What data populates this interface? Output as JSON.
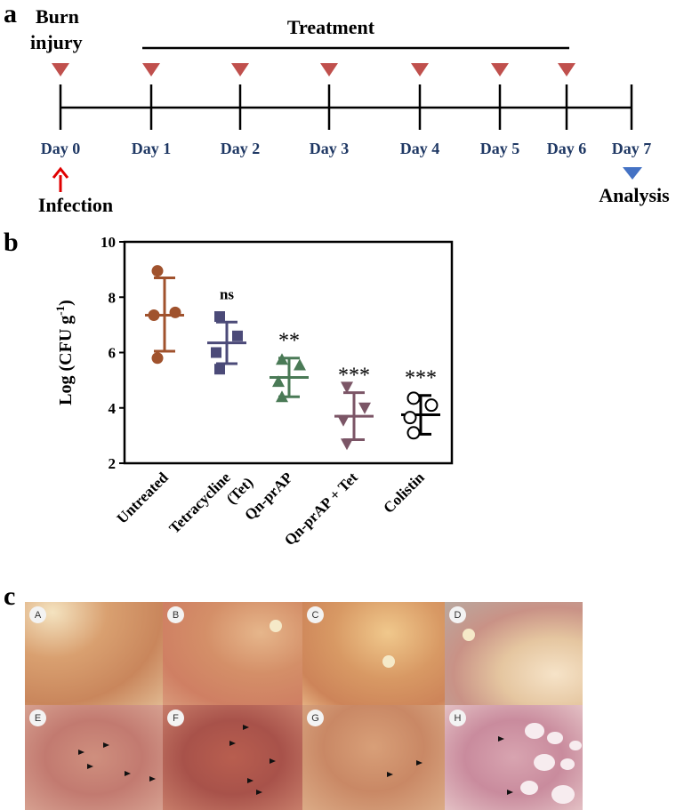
{
  "panel_a": {
    "panel_letter": "a",
    "burn_label_line1": "Burn",
    "burn_label_line2": "injury",
    "treatment_label": "Treatment",
    "days": [
      "Day 0",
      "Day 1",
      "Day 2",
      "Day 3",
      "Day 4",
      "Day 5",
      "Day 6",
      "Day 7"
    ],
    "infection_label": "Infection",
    "analysis_label": "Analysis",
    "colors": {
      "marker": "#c0504d",
      "day_text": "#1f3864",
      "infection_arrow": "#e00000",
      "analysis_marker": "#4472c4"
    }
  },
  "panel_b": {
    "panel_letter": "b"
  },
  "panel_c": {
    "panel_letter": "c",
    "tile_labels": [
      "A",
      "B",
      "C",
      "D",
      "E",
      "F",
      "G",
      "H"
    ]
  },
  "chart_data": {
    "type": "scatter",
    "ylabel_main": "Log (CFU g",
    "ylabel_sup": "-1",
    "ylabel_end": ")",
    "ylim": [
      2,
      10
    ],
    "yticks": [
      "2",
      "4",
      "6",
      "8",
      "10"
    ],
    "categories": [
      "Untreated",
      "Tetracycline (Tet)",
      "Qn-prAP",
      "Qn-prAP + Tet",
      "Colistin"
    ],
    "category_lines": [
      [
        "Untreated"
      ],
      [
        "Tetracycline",
        "(Tet)"
      ],
      [
        "Qn-prAP"
      ],
      [
        "Qn-prAP + Tet"
      ],
      [
        "Colistin"
      ]
    ],
    "series": [
      {
        "marker": "circle",
        "color": "#a0522d",
        "points": [
          8.95,
          7.45,
          7.35,
          5.8
        ],
        "mean": 7.35,
        "sd_upper": 8.7,
        "sd_lower": 6.05,
        "significance": ""
      },
      {
        "marker": "square",
        "color": "#4b4a78",
        "points": [
          7.3,
          6.6,
          6.0,
          5.4
        ],
        "mean": 6.35,
        "sd_upper": 7.1,
        "sd_lower": 5.6,
        "significance": "ns"
      },
      {
        "marker": "triangle",
        "color": "#4a7a56",
        "points": [
          5.75,
          5.55,
          4.95,
          4.4
        ],
        "mean": 5.1,
        "sd_upper": 5.8,
        "sd_lower": 4.4,
        "significance": "**"
      },
      {
        "marker": "triangle-down",
        "color": "#7b5566",
        "points": [
          4.75,
          4.0,
          3.55,
          2.7
        ],
        "mean": 3.7,
        "sd_upper": 4.55,
        "sd_lower": 2.85,
        "significance": "***"
      },
      {
        "marker": "open-circle",
        "color": "#000000",
        "points": [
          4.35,
          4.1,
          3.65,
          3.1
        ],
        "mean": 3.75,
        "sd_upper": 4.45,
        "sd_lower": 3.05,
        "significance": "***"
      }
    ]
  }
}
